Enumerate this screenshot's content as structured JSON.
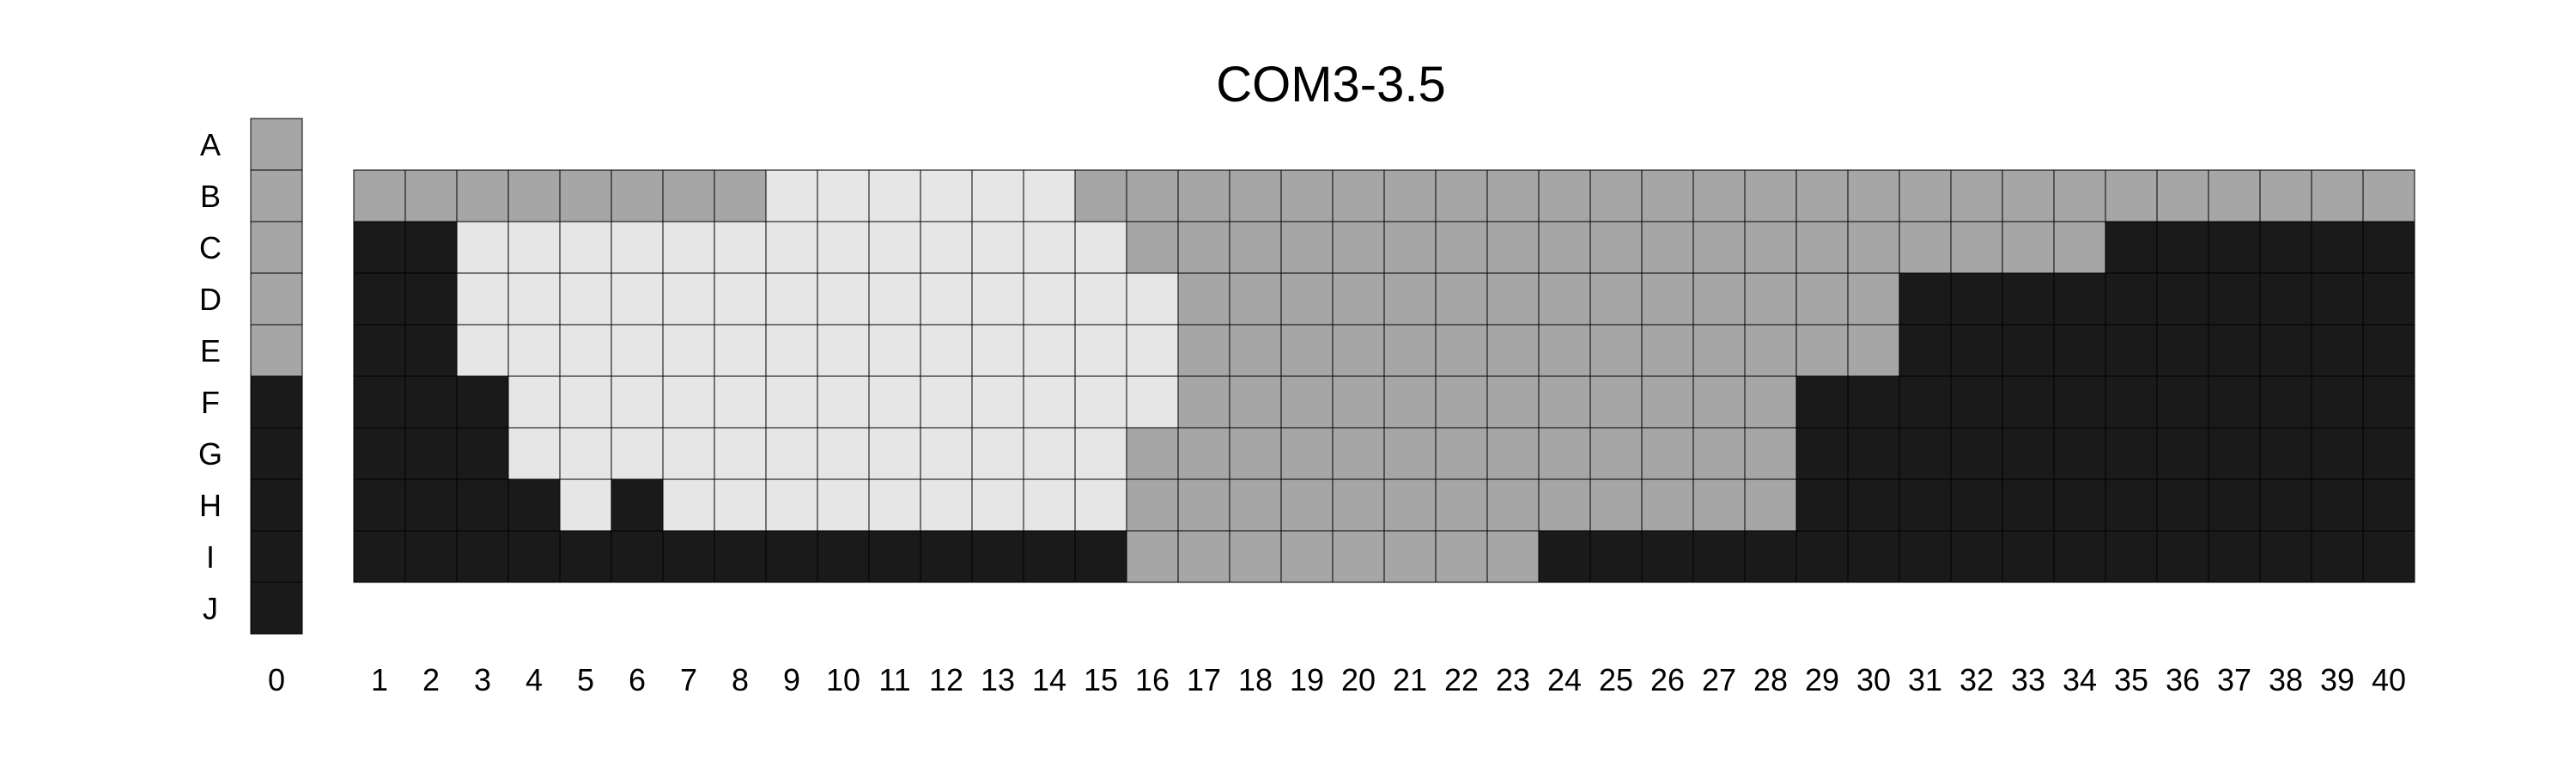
{
  "chart_data": {
    "type": "heatmap",
    "title": "COM3-3.5",
    "rows": [
      "A",
      "B",
      "C",
      "D",
      "E",
      "F",
      "G",
      "H",
      "I",
      "J"
    ],
    "reference_column": {
      "label": "0",
      "values": [
        2,
        2,
        2,
        2,
        2,
        3,
        3,
        3,
        3,
        3
      ]
    },
    "columns": [
      "1",
      "2",
      "3",
      "4",
      "5",
      "6",
      "7",
      "8",
      "9",
      "10",
      "11",
      "12",
      "13",
      "14",
      "15",
      "16",
      "17",
      "18",
      "19",
      "20",
      "21",
      "22",
      "23",
      "24",
      "25",
      "26",
      "27",
      "28",
      "29",
      "30",
      "31",
      "32",
      "33",
      "34",
      "35",
      "36",
      "37",
      "38",
      "39",
      "40"
    ],
    "grid_rows": [
      "B",
      "C",
      "D",
      "E",
      "F",
      "G",
      "H",
      "I"
    ],
    "grid": [
      [
        2,
        2,
        2,
        2,
        2,
        2,
        2,
        2,
        1,
        1,
        1,
        1,
        1,
        1,
        2,
        2,
        2,
        2,
        2,
        2,
        2,
        2,
        2,
        2,
        2,
        2,
        2,
        2,
        2,
        2,
        2,
        2,
        2,
        2,
        2,
        2,
        2,
        2,
        2,
        2
      ],
      [
        3,
        3,
        1,
        1,
        1,
        1,
        1,
        1,
        1,
        1,
        1,
        1,
        1,
        1,
        1,
        2,
        2,
        2,
        2,
        2,
        2,
        2,
        2,
        2,
        2,
        2,
        2,
        2,
        2,
        2,
        2,
        2,
        2,
        2,
        3,
        3,
        3,
        3,
        3,
        3
      ],
      [
        3,
        3,
        1,
        1,
        1,
        1,
        1,
        1,
        1,
        1,
        1,
        1,
        1,
        1,
        1,
        1,
        2,
        2,
        2,
        2,
        2,
        2,
        2,
        2,
        2,
        2,
        2,
        2,
        2,
        2,
        3,
        3,
        3,
        3,
        3,
        3,
        3,
        3,
        3,
        3
      ],
      [
        3,
        3,
        1,
        1,
        1,
        1,
        1,
        1,
        1,
        1,
        1,
        1,
        1,
        1,
        1,
        1,
        2,
        2,
        2,
        2,
        2,
        2,
        2,
        2,
        2,
        2,
        2,
        2,
        2,
        2,
        3,
        3,
        3,
        3,
        3,
        3,
        3,
        3,
        3,
        3
      ],
      [
        3,
        3,
        3,
        1,
        1,
        1,
        1,
        1,
        1,
        1,
        1,
        1,
        1,
        1,
        1,
        1,
        2,
        2,
        2,
        2,
        2,
        2,
        2,
        2,
        2,
        2,
        2,
        2,
        3,
        3,
        3,
        3,
        3,
        3,
        3,
        3,
        3,
        3,
        3,
        3
      ],
      [
        3,
        3,
        3,
        1,
        1,
        1,
        1,
        1,
        1,
        1,
        1,
        1,
        1,
        1,
        1,
        2,
        2,
        2,
        2,
        2,
        2,
        2,
        2,
        2,
        2,
        2,
        2,
        2,
        3,
        3,
        3,
        3,
        3,
        3,
        3,
        3,
        3,
        3,
        3,
        3
      ],
      [
        3,
        3,
        3,
        3,
        1,
        3,
        1,
        1,
        1,
        1,
        1,
        1,
        1,
        1,
        1,
        2,
        2,
        2,
        2,
        2,
        2,
        2,
        2,
        2,
        2,
        2,
        2,
        2,
        3,
        3,
        3,
        3,
        3,
        3,
        3,
        3,
        3,
        3,
        3,
        3
      ],
      [
        3,
        3,
        3,
        3,
        3,
        3,
        3,
        3,
        3,
        3,
        3,
        3,
        3,
        3,
        3,
        2,
        2,
        2,
        2,
        2,
        2,
        2,
        2,
        3,
        3,
        3,
        3,
        3,
        3,
        3,
        3,
        3,
        3,
        3,
        3,
        3,
        3,
        3,
        3,
        3
      ]
    ],
    "colors": {
      "1": "#e6e6e6",
      "2": "#a6a6a6",
      "3": "#1a1a1a"
    },
    "cell_stroke": "#000000"
  }
}
